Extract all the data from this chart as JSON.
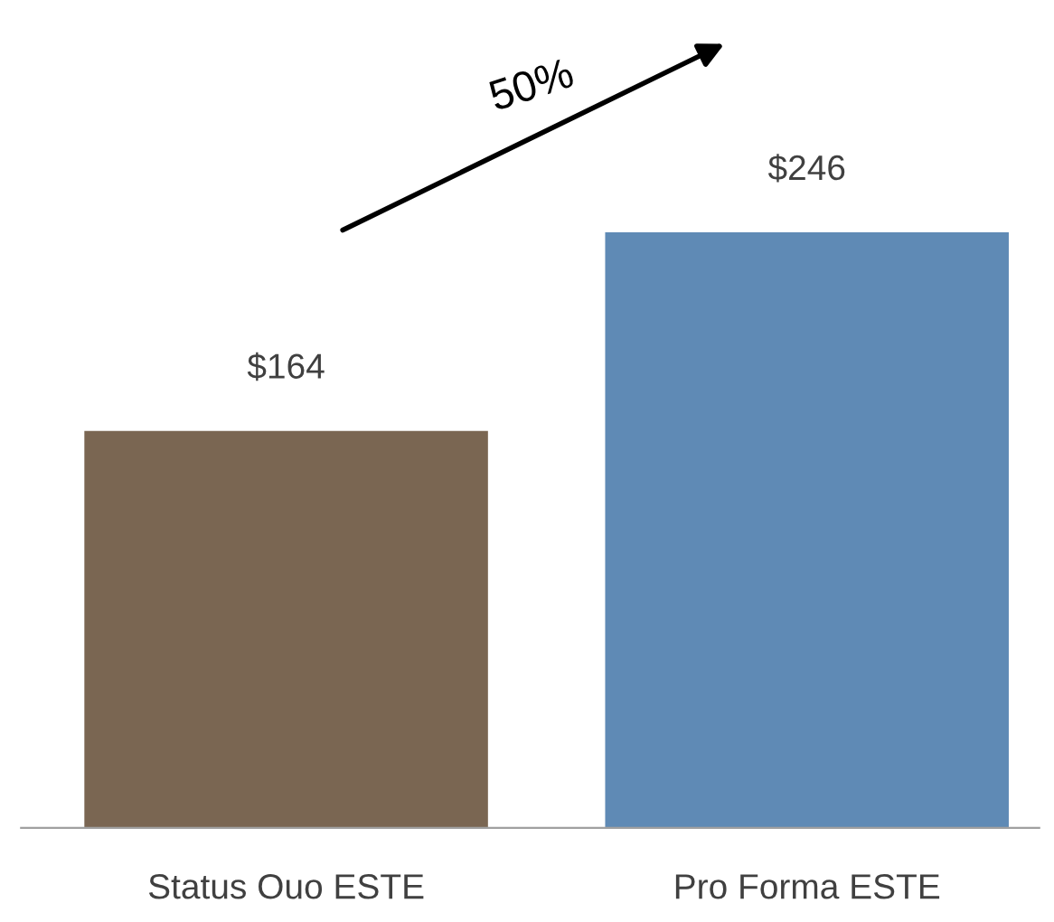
{
  "chart_data": {
    "type": "bar",
    "categories": [
      "Status Ouo ESTE",
      "Pro Forma ESTE"
    ],
    "values": [
      164,
      246
    ],
    "colors": [
      "#7a6652",
      "#5f8ab5"
    ],
    "value_labels": [
      "$164",
      "$246"
    ],
    "annotations": [
      "50%"
    ],
    "grid": false,
    "legend": false
  }
}
